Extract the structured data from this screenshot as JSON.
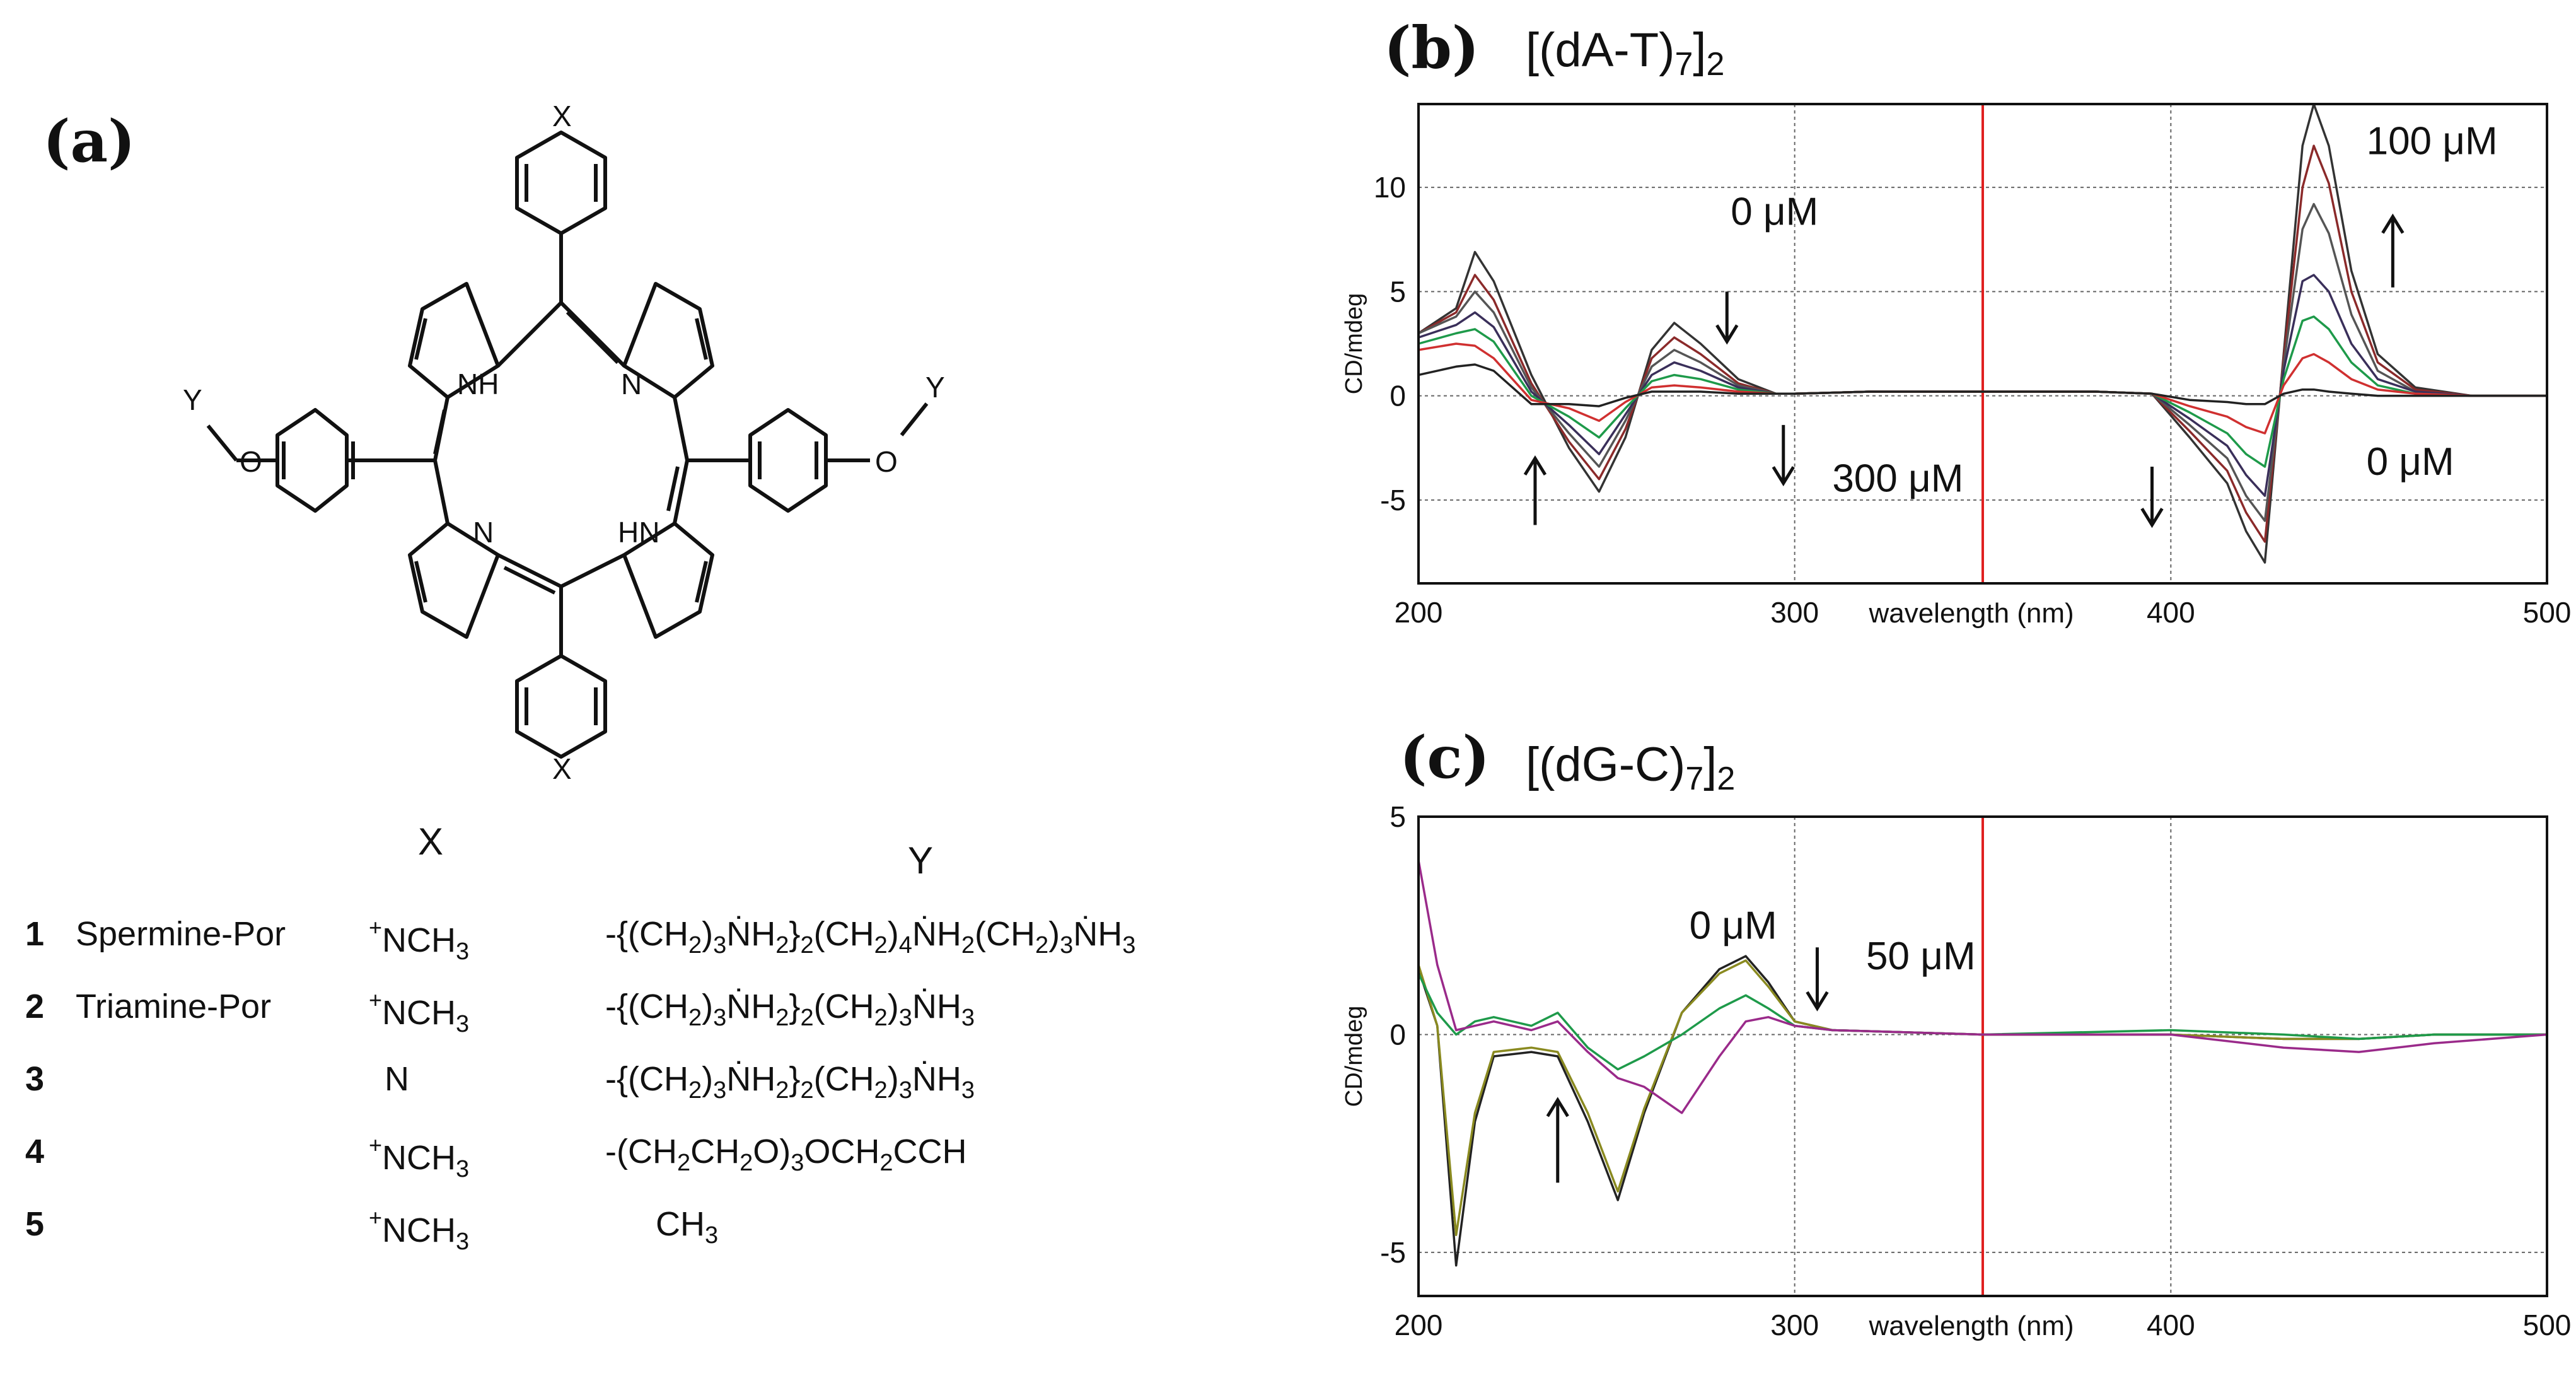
{
  "panel_a": {
    "label": "(a)",
    "structure": {
      "atoms": {
        "x_top": "X",
        "x_bottom": "X",
        "y_left": "Y",
        "y_right": "Y",
        "o_left": "O",
        "o_right": "O",
        "nh_top": "NH",
        "n_top": "N",
        "n_bottom": "N",
        "hn_bottom": "HN"
      }
    },
    "table": {
      "col_x": "X",
      "col_y": "Y",
      "rows": [
        {
          "num": "1",
          "name": "Spermine-Por",
          "x_charge": "+",
          "x_text": "NCH",
          "x_sub": "3",
          "y_html": "-{(CH<sub>2</sub>)<sub>3</sub>N&#x307;H<sub>2</sub>}<sub>2</sub>(CH<sub>2</sub>)<sub>4</sub>N&#x307;H<sub>2</sub>(CH<sub>2</sub>)<sub>3</sub>N&#x307;H<sub>3</sub>"
        },
        {
          "num": "2",
          "name": "Triamine-Por",
          "x_charge": "+",
          "x_text": "NCH",
          "x_sub": "3",
          "y_html": "-{(CH<sub>2</sub>)<sub>3</sub>N&#x307;H<sub>2</sub>}<sub>2</sub>(CH<sub>2</sub>)<sub>3</sub>N&#x307;H<sub>3</sub>"
        },
        {
          "num": "3",
          "name": "",
          "x_charge": "",
          "x_text": "N",
          "x_sub": "",
          "y_html": "-{(CH<sub>2</sub>)<sub>3</sub>N&#x307;H<sub>2</sub>}<sub>2</sub>(CH<sub>2</sub>)<sub>3</sub>N&#x307;H<sub>3</sub>"
        },
        {
          "num": "4",
          "name": "",
          "x_charge": "+",
          "x_text": "NCH",
          "x_sub": "3",
          "y_html": "-(CH<sub>2</sub>CH<sub>2</sub>O)<sub>3</sub>OCH<sub>2</sub>CCH"
        },
        {
          "num": "5",
          "name": "",
          "x_charge": "+",
          "x_text": "NCH",
          "x_sub": "3",
          "y_html": "CH<sub>3</sub>"
        }
      ]
    }
  },
  "panel_b": {
    "label": "(b)",
    "title_html": "[(dA-T)<sub>7</sub>]<sub>2</sub>",
    "ylabel": "CD/mdeg",
    "xlabel": "wavelength (nm)",
    "annotations": {
      "a1": "0 μM",
      "a2": "300 μM",
      "a3": "100 μM",
      "a4": "0 μM"
    }
  },
  "panel_c": {
    "label": "(c)",
    "title_html": "[(dG-C)<sub>7</sub>]<sub>2</sub>",
    "ylabel": "CD/mdeg",
    "xlabel": "wavelength (nm)",
    "annotations": {
      "a1": "0 μM",
      "a2": "50 μM"
    }
  },
  "chart_data": [
    {
      "type": "line",
      "title": "[(dA-T)7]2",
      "xlabel": "wavelength (nm)",
      "ylabel": "CD/mdeg",
      "xlim": [
        200,
        500
      ],
      "ylim": [
        -9,
        14
      ],
      "x_ticks": [
        200,
        300,
        400,
        500
      ],
      "y_ticks": [
        -5,
        0,
        5,
        10
      ],
      "grid": true,
      "vertical_marker": {
        "x": 350,
        "color": "#e02020"
      },
      "annotations": [
        "0 μM",
        "300 μM",
        "100 μM",
        "0 μM"
      ],
      "x": [
        200,
        210,
        215,
        220,
        230,
        240,
        248,
        255,
        262,
        268,
        275,
        285,
        295,
        300,
        320,
        350,
        380,
        395,
        405,
        415,
        420,
        425,
        430,
        435,
        438,
        442,
        448,
        455,
        465,
        480,
        500
      ],
      "series": [
        {
          "color": "#333333",
          "values": [
            3.0,
            4.2,
            6.9,
            5.5,
            1.0,
            -2.5,
            -4.6,
            -2.0,
            2.2,
            3.5,
            2.5,
            0.8,
            0.1,
            0.1,
            0.2,
            0.2,
            0.2,
            0.1,
            -2.0,
            -4.2,
            -6.5,
            -8.0,
            2.0,
            12.0,
            14.0,
            12.0,
            6.0,
            2.0,
            0.4,
            0.0,
            0.0
          ]
        },
        {
          "color": "#8b2a2a",
          "values": [
            3.0,
            4.0,
            5.8,
            4.6,
            0.6,
            -2.2,
            -4.0,
            -1.6,
            1.8,
            2.8,
            2.0,
            0.6,
            0.1,
            0.1,
            0.2,
            0.2,
            0.2,
            0.1,
            -1.7,
            -3.6,
            -5.6,
            -7.0,
            1.8,
            10.0,
            12.0,
            10.2,
            5.0,
            1.6,
            0.3,
            0.0,
            0.0
          ]
        },
        {
          "color": "#555555",
          "values": [
            3.0,
            3.8,
            5.0,
            4.0,
            0.4,
            -1.8,
            -3.4,
            -1.2,
            1.4,
            2.2,
            1.6,
            0.5,
            0.1,
            0.1,
            0.2,
            0.2,
            0.2,
            0.1,
            -1.4,
            -3.0,
            -4.8,
            -6.0,
            1.5,
            8.0,
            9.2,
            7.8,
            3.9,
            1.2,
            0.2,
            0.0,
            0.0
          ]
        },
        {
          "color": "#3a2f5a",
          "values": [
            2.8,
            3.4,
            4.0,
            3.3,
            0.2,
            -1.4,
            -2.8,
            -0.9,
            1.0,
            1.6,
            1.2,
            0.4,
            0.1,
            0.1,
            0.2,
            0.2,
            0.2,
            0.1,
            -1.1,
            -2.4,
            -3.8,
            -4.8,
            1.2,
            5.5,
            5.8,
            5.0,
            2.5,
            0.8,
            0.2,
            0.0,
            0.0
          ]
        },
        {
          "color": "#1e9a4a",
          "values": [
            2.5,
            3.0,
            3.2,
            2.6,
            0.0,
            -1.0,
            -2.0,
            -0.6,
            0.7,
            1.0,
            0.8,
            0.3,
            0.1,
            0.1,
            0.2,
            0.2,
            0.2,
            0.1,
            -0.8,
            -1.8,
            -2.8,
            -3.4,
            0.8,
            3.6,
            3.8,
            3.2,
            1.6,
            0.5,
            0.1,
            0.0,
            0.0
          ]
        },
        {
          "color": "#d03030",
          "values": [
            2.2,
            2.5,
            2.4,
            1.8,
            -0.2,
            -0.6,
            -1.2,
            -0.3,
            0.4,
            0.5,
            0.4,
            0.2,
            0.1,
            0.1,
            0.2,
            0.2,
            0.2,
            0.1,
            -0.5,
            -1.0,
            -1.5,
            -1.8,
            0.5,
            1.8,
            2.0,
            1.6,
            0.8,
            0.3,
            0.1,
            0.0,
            0.0
          ]
        },
        {
          "color": "#222222",
          "values": [
            1.0,
            1.4,
            1.5,
            1.2,
            -0.4,
            -0.4,
            -0.5,
            -0.1,
            0.2,
            0.2,
            0.2,
            0.1,
            0.1,
            0.1,
            0.2,
            0.2,
            0.2,
            0.1,
            -0.2,
            -0.3,
            -0.4,
            -0.4,
            0.1,
            0.3,
            0.3,
            0.2,
            0.1,
            0.0,
            0.0,
            0.0,
            0.0
          ]
        }
      ]
    },
    {
      "type": "line",
      "title": "[(dG-C)7]2",
      "xlabel": "wavelength (nm)",
      "ylabel": "CD/mdeg",
      "xlim": [
        200,
        500
      ],
      "ylim": [
        -6,
        5
      ],
      "x_ticks": [
        200,
        300,
        400,
        500
      ],
      "y_ticks": [
        -5,
        0,
        5
      ],
      "grid": true,
      "vertical_marker": {
        "x": 350,
        "color": "#e02020"
      },
      "annotations": [
        "0 μM",
        "50 μM"
      ],
      "x": [
        200,
        205,
        210,
        215,
        220,
        230,
        237,
        245,
        253,
        260,
        270,
        280,
        287,
        293,
        300,
        310,
        350,
        400,
        430,
        450,
        470,
        500
      ],
      "series": [
        {
          "color": "#222222",
          "values": [
            1.5,
            0.2,
            -5.3,
            -2.0,
            -0.5,
            -0.4,
            -0.5,
            -2.0,
            -3.8,
            -1.8,
            0.5,
            1.5,
            1.8,
            1.2,
            0.3,
            0.1,
            0.0,
            0.0,
            -0.1,
            -0.1,
            0.0,
            0.0
          ]
        },
        {
          "color": "#8a8a20",
          "values": [
            1.6,
            0.2,
            -4.6,
            -1.8,
            -0.4,
            -0.3,
            -0.4,
            -1.8,
            -3.6,
            -1.7,
            0.5,
            1.4,
            1.7,
            1.1,
            0.3,
            0.1,
            0.0,
            0.0,
            -0.1,
            -0.1,
            0.0,
            0.0
          ]
        },
        {
          "color": "#1e9a4a",
          "values": [
            1.4,
            0.5,
            0.0,
            0.3,
            0.4,
            0.2,
            0.5,
            -0.3,
            -0.8,
            -0.5,
            0.0,
            0.6,
            0.9,
            0.6,
            0.2,
            0.1,
            0.0,
            0.1,
            0.0,
            -0.1,
            0.0,
            0.0
          ]
        },
        {
          "color": "#9a2a8a",
          "values": [
            4.0,
            1.6,
            0.1,
            0.2,
            0.3,
            0.1,
            0.3,
            -0.4,
            -1.0,
            -1.2,
            -1.8,
            -0.5,
            0.3,
            0.4,
            0.2,
            0.1,
            0.0,
            0.0,
            -0.3,
            -0.4,
            -0.2,
            0.0
          ]
        }
      ]
    }
  ]
}
